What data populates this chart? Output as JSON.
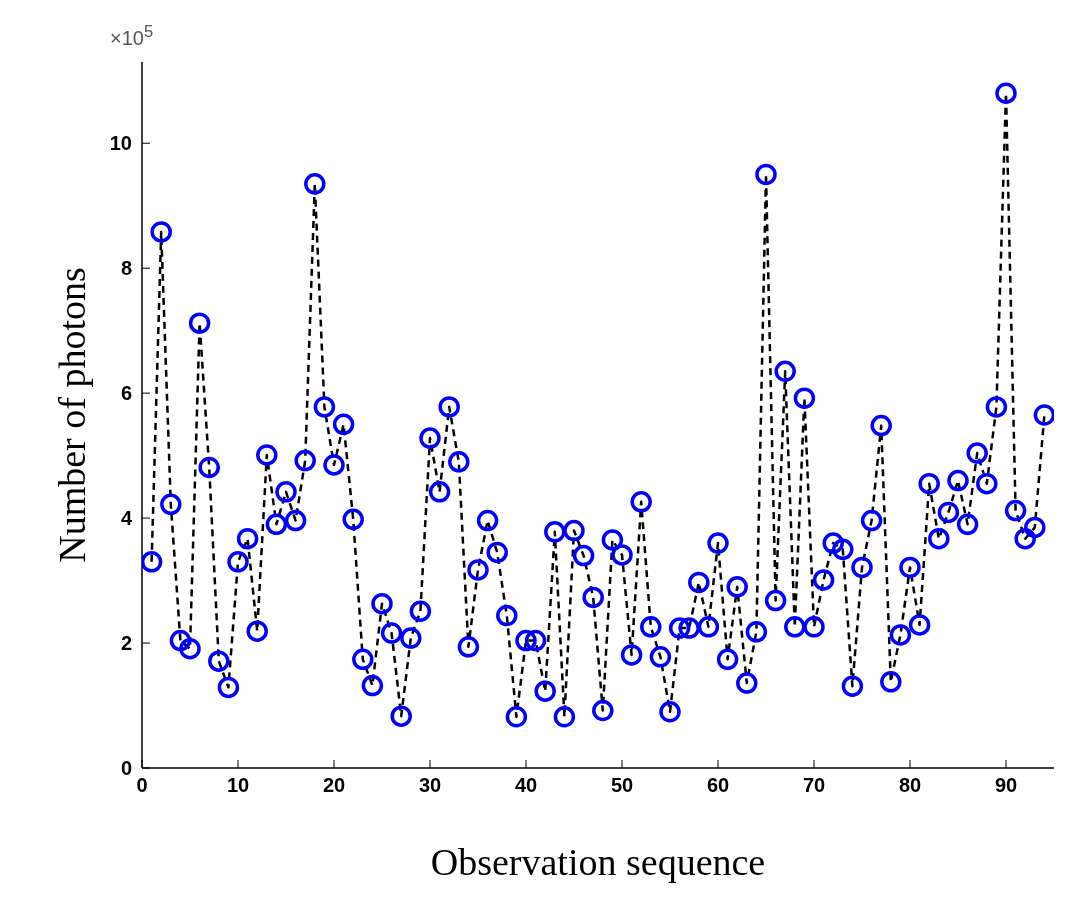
{
  "chart_data": {
    "type": "line",
    "xlabel": "Observation sequence",
    "ylabel": "Number of photons",
    "annotations": [
      "×10$^{5}$"
    ],
    "x": [
      1,
      2,
      3,
      4,
      5,
      6,
      7,
      8,
      9,
      10,
      11,
      12,
      13,
      14,
      15,
      16,
      17,
      18,
      19,
      20,
      21,
      22,
      23,
      24,
      25,
      26,
      27,
      28,
      29,
      30,
      31,
      32,
      33,
      34,
      35,
      36,
      37,
      38,
      39,
      40,
      41,
      42,
      43,
      44,
      45,
      46,
      47,
      48,
      49,
      50,
      51,
      52,
      53,
      54,
      55,
      56,
      57,
      58,
      59,
      60,
      61,
      62,
      63,
      64,
      65,
      66,
      67,
      68,
      69,
      70,
      71,
      72,
      73,
      74,
      75,
      76,
      77,
      78,
      79,
      80,
      81,
      82,
      83,
      84,
      85,
      86,
      87,
      88,
      89,
      90,
      91,
      92,
      93,
      94
    ],
    "series": [
      {
        "color": "#0000ff",
        "values": [
          3.3,
          8.58,
          4.22,
          2.04,
          1.91,
          7.12,
          4.81,
          1.71,
          1.29,
          3.3,
          3.67,
          2.19,
          5.01,
          3.9,
          4.42,
          3.96,
          4.92,
          9.35,
          5.78,
          4.85,
          5.5,
          3.98,
          1.74,
          1.32,
          2.63,
          2.16,
          0.83,
          2.08,
          2.51,
          5.28,
          4.42,
          5.78,
          4.9,
          1.94,
          3.17,
          3.96,
          3.45,
          2.44,
          0.82,
          2.04,
          2.04,
          1.23,
          3.78,
          0.82,
          3.8,
          3.4,
          2.73,
          0.92,
          3.65,
          3.41,
          1.81,
          4.26,
          2.26,
          1.78,
          0.9,
          2.24,
          2.24,
          2.97,
          2.26,
          3.6,
          1.74,
          2.9,
          1.36,
          2.18,
          9.5,
          2.68,
          6.35,
          2.26,
          5.92,
          2.26,
          3.01,
          3.6,
          3.5,
          1.31,
          3.21,
          3.96,
          5.48,
          1.38,
          2.13,
          3.21,
          2.29,
          4.55,
          3.67,
          4.09,
          4.6,
          3.9,
          5.04,
          4.55,
          5.78,
          10.8,
          4.12,
          3.67,
          3.85,
          5.65
        ]
      }
    ],
    "xlim": [
      0,
      95
    ],
    "xticks": [
      0,
      10,
      20,
      30,
      40,
      50,
      60,
      70,
      80,
      90
    ],
    "ylim": [
      0,
      11.3
    ],
    "yticks": [
      0,
      2,
      4,
      6,
      8,
      10
    ],
    "grid": false,
    "marker": "circle",
    "line_style": "dashed"
  }
}
